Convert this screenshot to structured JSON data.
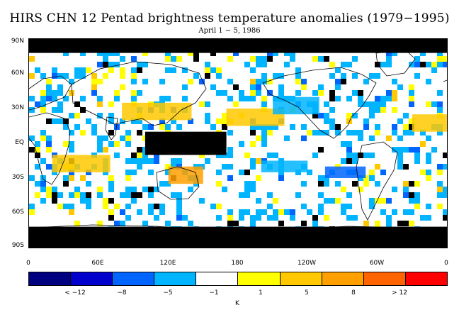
{
  "title": "HIRS CHN 12 Pentad brightness temperature anomalies (1979−1995)",
  "subtitle": "April 1 − 5, 1986",
  "latitude_labels": [
    "90N",
    "60N",
    "30N",
    "EQ",
    "30S",
    "60S",
    "90S"
  ],
  "longitude_labels": [
    "0",
    "60E",
    "120E",
    "180",
    "120W",
    "60W",
    "0"
  ],
  "colorbar": {
    "colors": [
      "#000080",
      "#0000cd",
      "#0064ff",
      "#00b4ff",
      "#ffffff",
      "#ffff00",
      "#ffc800",
      "#ffa000",
      "#ff6400",
      "#ff0000"
    ],
    "labels": [
      "< −12",
      "−8",
      "−5",
      "−1",
      "1",
      "5",
      "8",
      "> 12"
    ],
    "unit": "K"
  },
  "chart_data": {
    "type": "heatmap",
    "title": "HIRS CHN 12 Pentad brightness temperature anomalies (1979−1995)",
    "subtitle": "April 1 − 5, 1986",
    "xlabel": "",
    "ylabel": "",
    "x_ticks": [
      "0",
      "60E",
      "120E",
      "180",
      "120W",
      "60W",
      "0"
    ],
    "y_ticks": [
      "90N",
      "60N",
      "30N",
      "EQ",
      "30S",
      "60S",
      "90S"
    ],
    "colorbar_unit": "K",
    "colorbar_bounds": [
      -12,
      -8,
      -5,
      -1,
      1,
      5,
      8,
      12
    ],
    "missing_color": "#000000",
    "regions": [
      {
        "lon": [
          0,
          360
        ],
        "lat": [
          -90,
          -72
        ],
        "value": "missing"
      },
      {
        "lon": [
          0,
          360
        ],
        "lat": [
          78,
          90
        ],
        "value": "missing"
      },
      {
        "lon": [
          20,
          70
        ],
        "lat": [
          -25,
          -10
        ],
        "value": 5
      },
      {
        "lon": [
          80,
          140
        ],
        "lat": [
          20,
          35
        ],
        "value": 5
      },
      {
        "lon": [
          120,
          150
        ],
        "lat": [
          -35,
          -20
        ],
        "value": 8
      },
      {
        "lon": [
          170,
          220
        ],
        "lat": [
          15,
          30
        ],
        "value": 5
      },
      {
        "lon": [
          200,
          240
        ],
        "lat": [
          -25,
          -15
        ],
        "value": -5
      },
      {
        "lon": [
          255,
          290
        ],
        "lat": [
          -30,
          -20
        ],
        "value": -8
      },
      {
        "lon": [
          100,
          170
        ],
        "lat": [
          -10,
          10
        ],
        "value": "missing"
      },
      {
        "lon": [
          210,
          250
        ],
        "lat": [
          25,
          40
        ],
        "value": -5
      },
      {
        "lon": [
          330,
          360
        ],
        "lat": [
          10,
          25
        ],
        "value": 5
      }
    ]
  }
}
